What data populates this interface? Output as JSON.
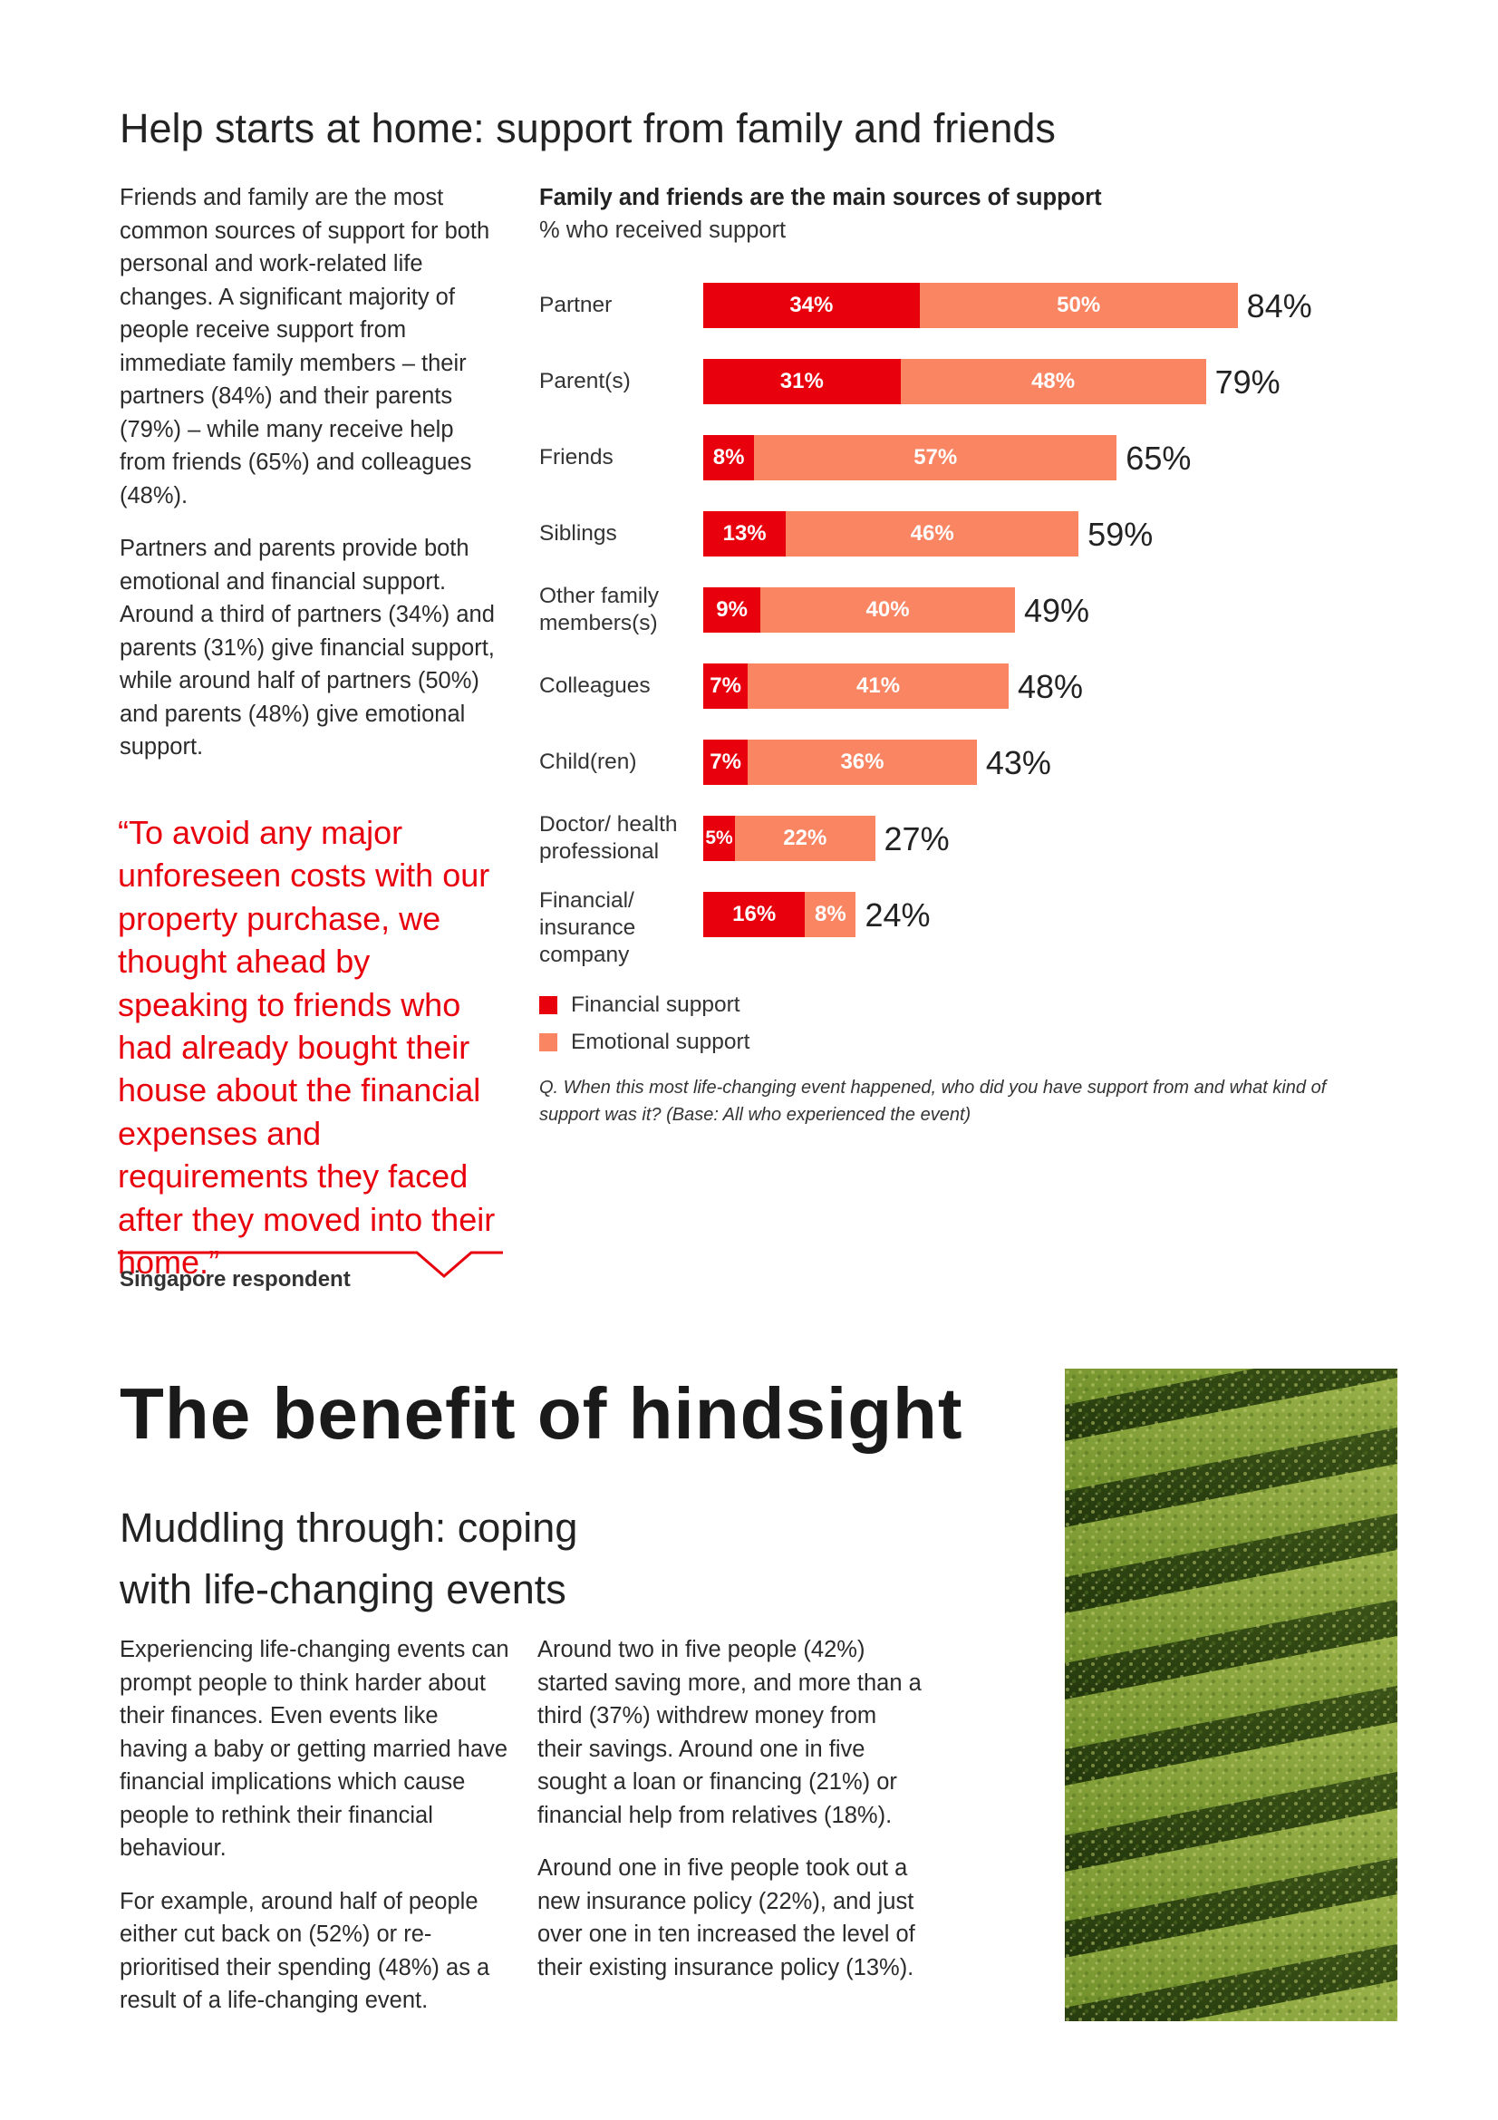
{
  "section1": {
    "heading": "Help starts at home: support from family and friends",
    "paragraphs": [
      "Friends and family are the most common sources of support for both personal and work-related life changes. A significant majority of people receive support from immediate family members – their partners (84%) and their parents (79%) – while many receive help from friends (65%) and colleagues (48%).",
      "Partners and parents provide both emotional and financial support. Around a third of partners (34%) and parents (31%) give financial support, while around half of partners (50%) and parents (48%) give emotional support."
    ],
    "quote": "“To avoid any major unforeseen costs with our property purchase, we thought ahead by speaking to friends who had already bought their house about the financial expenses and requirements they faced after they moved into their home.”",
    "quote_attribution": "Singapore respondent"
  },
  "chart_data": {
    "type": "bar",
    "orientation": "horizontal",
    "stacked": true,
    "title": "Family and friends are the main sources of support",
    "subtitle": "% who received support",
    "categories": [
      "Partner",
      "Parent(s)",
      "Friends",
      "Siblings",
      "Other family members(s)",
      "Colleagues",
      "Child(ren)",
      "Doctor/ health professional",
      "Financial/ insurance company"
    ],
    "series": [
      {
        "name": "Financial support",
        "color": "#e8000d",
        "values": [
          34,
          31,
          8,
          13,
          9,
          7,
          7,
          5,
          16
        ]
      },
      {
        "name": "Emotional support",
        "color": "#fa8563",
        "values": [
          50,
          48,
          57,
          46,
          40,
          41,
          36,
          22,
          8
        ]
      }
    ],
    "totals": [
      84,
      79,
      65,
      59,
      49,
      48,
      43,
      27,
      24
    ],
    "value_suffix": "%",
    "legend_position": "bottom-left",
    "grid": false,
    "footnote": "Q. When this most life-changing event happened, who did you have support from and what kind of support was it? (Base: All who experienced the event)"
  },
  "section2": {
    "title": "The benefit of hindsight",
    "subheading_lines": [
      "Muddling through: coping",
      "with life-changing events"
    ],
    "col1_paragraphs": [
      "Experiencing life-changing events can prompt people to think harder about their finances. Even events like having a baby or getting married have financial implications which cause people to rethink their financial behaviour.",
      "For example, around half of people either cut back on (52%) or re-prioritised their spending (48%) as a result of a life-changing event."
    ],
    "col2_paragraphs": [
      "Around two in five people (42%) started saving more, and more than a third (37%) withdrew money from their savings. Around one in five sought a loan or financing (21%) or financial help from relatives (18%).",
      "Around one in five people took out a new insurance policy (22%), and just over one in ten increased the level of their existing insurance policy (13%)."
    ],
    "image_subject": "hedge-maze-photo"
  }
}
